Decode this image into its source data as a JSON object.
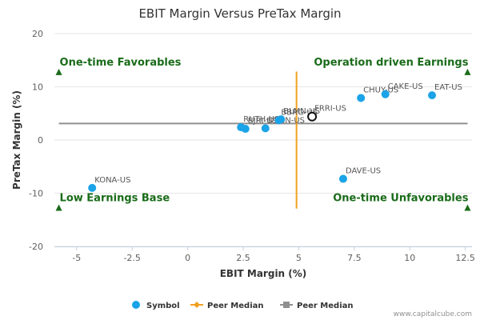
{
  "chart_data": {
    "type": "scatter",
    "title": "EBIT Margin Versus PreTax Margin",
    "xlabel": "EBIT Margin (%)",
    "ylabel": "PreTax Margin (%)",
    "xlim": [
      -6,
      12.8
    ],
    "ylim": [
      -20,
      20
    ],
    "xticks": [
      -5,
      -2.5,
      0,
      2.5,
      5,
      7.5,
      10,
      12.5
    ],
    "xtick_labels": [
      "-5",
      "-2.5",
      "0",
      "2.5",
      "5",
      "7.5",
      "10",
      "12.5"
    ],
    "yticks": [
      -20,
      -10,
      0,
      10,
      20
    ],
    "ytick_labels": [
      "-20",
      "-10",
      "0",
      "10",
      "20"
    ],
    "colors": {
      "symbol": "#1aa3e8",
      "peer_median_vertical": "#f0a020",
      "peer_median_horizontal": "#909090",
      "quadrant_text": "#1a6b1a",
      "marker": "#1a6b1a"
    },
    "points": [
      {
        "label": "KONA-US",
        "x": -4.3,
        "y": -9.0
      },
      {
        "label": "RUTH-US",
        "x": 2.4,
        "y": 2.4
      },
      {
        "label": "BJRI-US",
        "x": 2.6,
        "y": 2.1
      },
      {
        "label": "DENN-US",
        "x": 3.5,
        "y": 2.2
      },
      {
        "label": "BBRG-US",
        "x": 4.1,
        "y": 3.7
      },
      {
        "label": "BLMN-US",
        "x": 4.2,
        "y": 3.9
      },
      {
        "label": "DAVE-US",
        "x": 7.0,
        "y": -7.3
      },
      {
        "label": "CHUY-US",
        "x": 7.8,
        "y": 7.9
      },
      {
        "label": "CAKE-US",
        "x": 8.9,
        "y": 8.6
      },
      {
        "label": "EAT-US",
        "x": 11.0,
        "y": 8.4
      }
    ],
    "focus_point": {
      "label": "FRRI-US",
      "x": 5.6,
      "y": 4.4
    },
    "peer_median_x": 4.9,
    "peer_median_y": 3.1,
    "peer_median_x_range": [
      -12.8,
      12.8
    ],
    "peer_median_y_range": [
      -5.8,
      12.6
    ],
    "quadrants": [
      {
        "name": "One-time Favorables",
        "x": -5.8,
        "y": 12.8
      },
      {
        "name": "Operation driven Earnings",
        "x": 12.6,
        "y": 12.8
      },
      {
        "name": "Low Earnings Base",
        "x": -5.8,
        "y": -12.7
      },
      {
        "name": "One-time Unfavorables",
        "x": 12.6,
        "y": -12.7
      }
    ],
    "legend": {
      "placement": "bottom",
      "items": [
        {
          "label": "Symbol",
          "marker": "circle"
        },
        {
          "label": "Peer Median",
          "marker": "line-diamond"
        },
        {
          "label": "Peer Median",
          "marker": "line-square"
        }
      ]
    },
    "credit": "www.capitalcube.com"
  }
}
